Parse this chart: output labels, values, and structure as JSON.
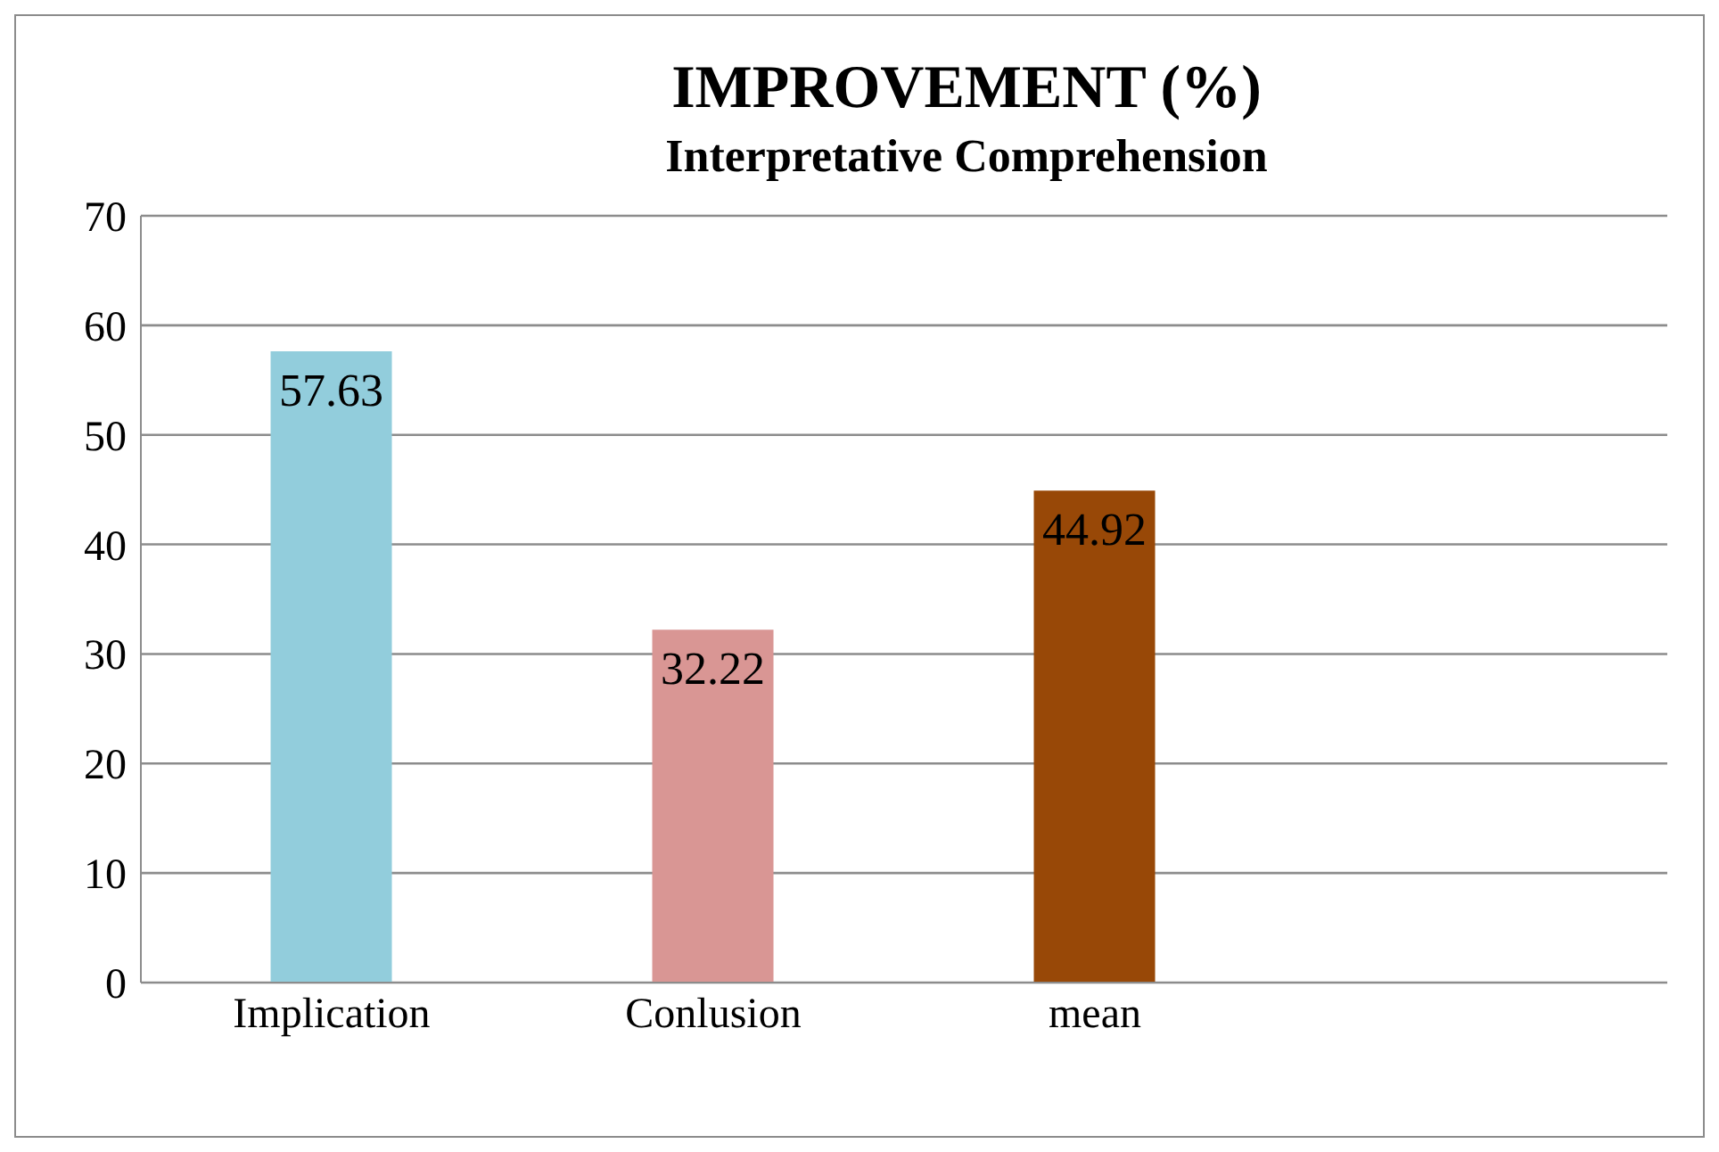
{
  "chart_data": {
    "type": "bar",
    "title": "IMPROVEMENT (%)",
    "subtitle": "Interpretative Comprehension",
    "categories": [
      "Implication",
      "Conlusion",
      "mean",
      null
    ],
    "values": [
      57.63,
      32.22,
      44.92,
      null
    ],
    "colors": [
      "#92cddc",
      "#d99694",
      "#984807",
      "#984807"
    ],
    "ylim": [
      0,
      70
    ],
    "yticks": [
      0,
      10,
      20,
      30,
      40,
      50,
      60,
      70
    ],
    "grid": "y",
    "data_labels": true,
    "legend": false
  }
}
